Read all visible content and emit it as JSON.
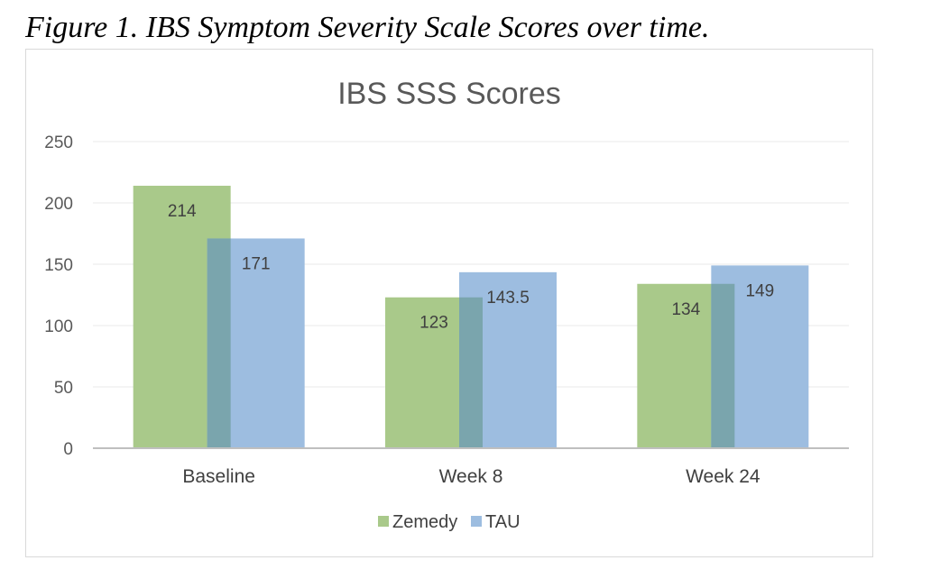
{
  "caption": "Figure 1. IBS Symptom Severity Scale Scores over time.",
  "chart_data": {
    "type": "bar",
    "title": "IBS SSS Scores",
    "categories": [
      "Baseline",
      "Week 8",
      "Week 24"
    ],
    "series": [
      {
        "name": "Zemedy",
        "values": [
          214,
          123,
          134
        ],
        "labels": [
          "214",
          "123",
          "134"
        ],
        "color": "#a9c98a"
      },
      {
        "name": "TAU",
        "values": [
          171,
          143.5,
          149
        ],
        "labels": [
          "171",
          "143.5",
          "149"
        ],
        "color": "#9dbde0"
      }
    ],
    "overlap_color": "#7aa5ad",
    "ylim": [
      0,
      250
    ],
    "yticks": [
      0,
      50,
      100,
      150,
      200,
      250
    ],
    "xlabel": "",
    "ylabel": "",
    "grid": true,
    "legend_position": "bottom"
  }
}
